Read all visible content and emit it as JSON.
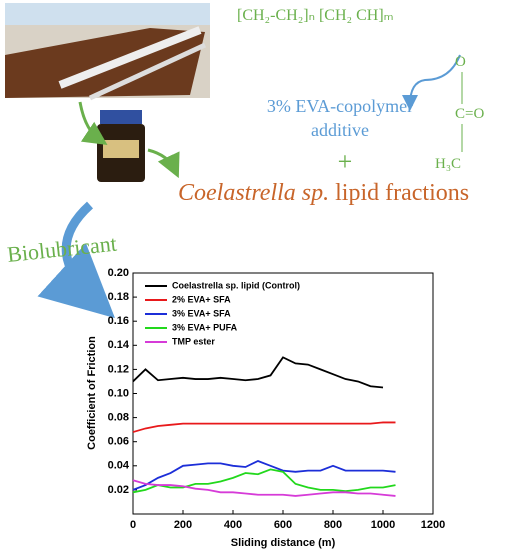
{
  "header": {
    "formula_top": "[CH₂-CH₂]ₙ [CH₂    CH]ₘ",
    "formula_o": "O",
    "formula_co": "C=O",
    "formula_h3c": "H₃C",
    "additive_line1": "3% EVA-copolymer",
    "additive_line2": "additive",
    "plus": "+",
    "lipid_italic": "Coelastrella sp.",
    "lipid_rest": " lipid fractions",
    "biolubricant": "Biolubricant"
  },
  "chart_data": {
    "type": "line",
    "x_label": "Sliding distance (m)",
    "y_label": "Coefficient of Friction",
    "x": [
      0,
      50,
      100,
      150,
      200,
      250,
      300,
      350,
      400,
      450,
      500,
      550,
      600,
      650,
      700,
      750,
      800,
      850,
      900,
      950,
      1000,
      1050
    ],
    "series": [
      {
        "name": "Coelastrella sp. lipid (Control)",
        "color": "#000000",
        "values": [
          0.11,
          0.12,
          0.111,
          0.112,
          0.113,
          0.112,
          0.112,
          0.113,
          0.112,
          0.111,
          0.112,
          0.115,
          0.13,
          0.125,
          0.124,
          0.12,
          0.116,
          0.112,
          0.11,
          0.106,
          0.105,
          null
        ]
      },
      {
        "name": "2% EVA+ SFA",
        "color": "#e8191b",
        "values": [
          0.068,
          0.071,
          0.073,
          0.074,
          0.075,
          0.075,
          0.075,
          0.075,
          0.075,
          0.075,
          0.075,
          0.075,
          0.075,
          0.075,
          0.075,
          0.075,
          0.075,
          0.075,
          0.075,
          0.075,
          0.076,
          0.076
        ]
      },
      {
        "name": "3% EVA+ SFA",
        "color": "#1c2ed8",
        "values": [
          0.02,
          0.024,
          0.03,
          0.034,
          0.04,
          0.041,
          0.042,
          0.042,
          0.04,
          0.039,
          0.044,
          0.04,
          0.036,
          0.035,
          0.036,
          0.036,
          0.04,
          0.036,
          0.036,
          0.036,
          0.036,
          0.035
        ]
      },
      {
        "name": "3% EVA+ PUFA",
        "color": "#22d81c",
        "values": [
          0.018,
          0.02,
          0.024,
          0.022,
          0.022,
          0.025,
          0.025,
          0.027,
          0.03,
          0.034,
          0.033,
          0.037,
          0.035,
          0.025,
          0.022,
          0.02,
          0.02,
          0.019,
          0.02,
          0.022,
          0.022,
          0.024
        ]
      },
      {
        "name": "TMP ester",
        "color": "#d63bd8",
        "values": [
          0.028,
          0.025,
          0.024,
          0.024,
          0.023,
          0.021,
          0.02,
          0.018,
          0.018,
          0.017,
          0.016,
          0.016,
          0.016,
          0.015,
          0.016,
          0.017,
          0.018,
          0.018,
          0.017,
          0.017,
          0.016,
          0.015
        ]
      }
    ],
    "xlim": [
      0,
      1200
    ],
    "xticks": [
      0,
      200,
      400,
      600,
      800,
      1000,
      1200
    ],
    "ylim": [
      0,
      0.2
    ],
    "yticks": [
      {
        "value": 0.02,
        "label": "0.02"
      },
      {
        "value": 0.04,
        "label": "0.04"
      },
      {
        "value": 0.06,
        "label": "0.06"
      },
      {
        "value": 0.08,
        "label": "0.08"
      },
      {
        "value": 0.1,
        "label": "0.10"
      },
      {
        "value": 0.12,
        "label": "0.12"
      },
      {
        "value": 0.14,
        "label": "0.14"
      },
      {
        "value": 0.16,
        "label": "0.16"
      },
      {
        "value": 0.18,
        "label": "0.18"
      },
      {
        "value": 0.2,
        "label": "0.20"
      }
    ],
    "legend": "upper-left"
  }
}
